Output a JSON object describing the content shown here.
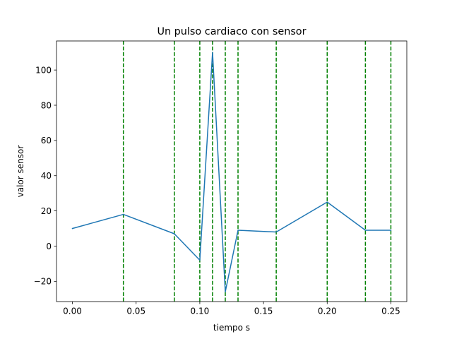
{
  "chart_data": {
    "type": "line",
    "title": "Un pulso cardiaco con sensor",
    "xlabel": "tiempo s",
    "ylabel": "valor sensor",
    "xlim": [
      -0.0125,
      0.2625
    ],
    "ylim": [
      -31.5,
      116.5
    ],
    "xticks": [
      0.0,
      0.05,
      0.1,
      0.15,
      0.2,
      0.25
    ],
    "xtick_labels": [
      "0.00",
      "0.05",
      "0.10",
      "0.15",
      "0.20",
      "0.25"
    ],
    "yticks": [
      -20,
      0,
      20,
      40,
      60,
      80,
      100
    ],
    "ytick_labels": [
      "−20",
      "0",
      "20",
      "40",
      "60",
      "80",
      "100"
    ],
    "grid": false,
    "series": [
      {
        "color": "#1f77b4",
        "x": [
          0.0,
          0.04,
          0.08,
          0.1,
          0.11,
          0.12,
          0.13,
          0.16,
          0.2,
          0.23,
          0.25
        ],
        "y": [
          10,
          18,
          7,
          -8,
          110,
          -26,
          9,
          8,
          25,
          9,
          9
        ]
      }
    ],
    "vlines": {
      "color": "#008000",
      "style": "dashed",
      "x": [
        0.04,
        0.08,
        0.1,
        0.11,
        0.12,
        0.13,
        0.16,
        0.2,
        0.23,
        0.25
      ]
    }
  }
}
